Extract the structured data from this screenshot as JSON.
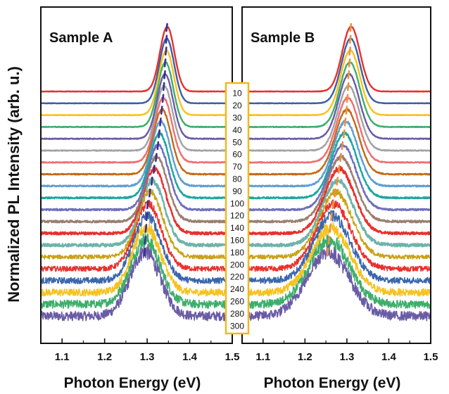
{
  "chart_data": {
    "type": "line",
    "ylabel": "Normalized PL Intensity (arb. u.)",
    "legend": {
      "title": "",
      "labels": [
        "10",
        "20",
        "30",
        "40",
        "50",
        "60",
        "70",
        "80",
        "90",
        "100",
        "120",
        "140",
        "160",
        "180",
        "200",
        "220",
        "240",
        "260",
        "280",
        "300"
      ],
      "border_color": "#f3b81e"
    },
    "colors": [
      "#e8302d",
      "#3a5fa8",
      "#f6c21e",
      "#3dae6b",
      "#6a5ba5",
      "#a3a3a3",
      "#ee7073",
      "#c06c18",
      "#5f9ed2",
      "#1aa7a0",
      "#6f6fbf",
      "#9a7f70",
      "#e8302d",
      "#6fb3ab",
      "#c9a215",
      "#e8302d",
      "#3a66ad",
      "#f6c21e",
      "#3dae6b",
      "#6a5ba5"
    ],
    "panels": [
      {
        "title": "Sample A",
        "xlabel": "Photon  Energy (eV)",
        "xlim": [
          1.05,
          1.5
        ],
        "xticks": [
          "1.1",
          "1.2",
          "1.3",
          "1.4",
          "1.5"
        ],
        "tick_values": [
          1.1,
          1.2,
          1.3,
          1.4,
          1.5
        ],
        "peak_energy_eV": [
          1.347,
          1.346,
          1.345,
          1.343,
          1.342,
          1.34,
          1.338,
          1.335,
          1.332,
          1.329,
          1.326,
          1.322,
          1.317,
          1.312,
          1.307,
          1.302,
          1.3,
          1.298,
          1.296,
          1.295
        ],
        "fwhm_eV": [
          0.04,
          0.041,
          0.042,
          0.043,
          0.044,
          0.046,
          0.048,
          0.05,
          0.052,
          0.054,
          0.057,
          0.06,
          0.063,
          0.066,
          0.07,
          0.073,
          0.076,
          0.078,
          0.08,
          0.082
        ],
        "noise_level": [
          0.004,
          0.004,
          0.005,
          0.006,
          0.007,
          0.008,
          0.009,
          0.01,
          0.012,
          0.014,
          0.016,
          0.02,
          0.025,
          0.03,
          0.04,
          0.05,
          0.06,
          0.07,
          0.08,
          0.09
        ],
        "marker_color": "#3b2f8f"
      },
      {
        "title": "Sample B",
        "xlabel": "Photon  Energy (eV)",
        "xlim": [
          1.05,
          1.5
        ],
        "xticks": [
          "1.1",
          "1.2",
          "1.3",
          "1.4",
          "1.5"
        ],
        "tick_values": [
          1.1,
          1.2,
          1.3,
          1.4,
          1.5
        ],
        "peak_energy_eV": [
          1.31,
          1.309,
          1.308,
          1.307,
          1.305,
          1.304,
          1.302,
          1.3,
          1.297,
          1.294,
          1.29,
          1.286,
          1.282,
          1.278,
          1.273,
          1.268,
          1.264,
          1.261,
          1.258,
          1.255
        ],
        "fwhm_eV": [
          0.05,
          0.052,
          0.054,
          0.056,
          0.058,
          0.06,
          0.062,
          0.065,
          0.068,
          0.071,
          0.075,
          0.079,
          0.083,
          0.087,
          0.092,
          0.097,
          0.102,
          0.107,
          0.112,
          0.117
        ],
        "noise_level": [
          0.004,
          0.004,
          0.005,
          0.006,
          0.007,
          0.008,
          0.009,
          0.01,
          0.012,
          0.014,
          0.016,
          0.02,
          0.025,
          0.03,
          0.04,
          0.05,
          0.06,
          0.07,
          0.08,
          0.09
        ],
        "marker_color": "#f0913a"
      }
    ]
  }
}
